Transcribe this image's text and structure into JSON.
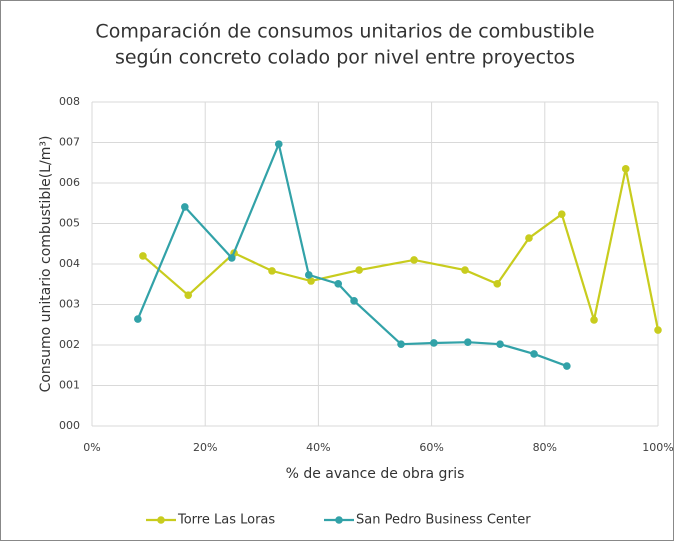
{
  "chart_data": {
    "type": "line",
    "title": [
      "Comparación de consumos unitarios de combustible",
      "según concreto colado por nivel entre proyectos"
    ],
    "x_label": "% de avance de obra gris",
    "y_label": "Consumo unitario combustible(L/m³)",
    "xlim": [
      0,
      100
    ],
    "xticks": [
      {
        "value": 0,
        "label": "0%"
      },
      {
        "value": 20,
        "label": "20%"
      },
      {
        "value": 40,
        "label": "40%"
      },
      {
        "value": 60,
        "label": "60%"
      },
      {
        "value": 80,
        "label": "80%"
      },
      {
        "value": 100,
        "label": "100%"
      }
    ],
    "ylim": [
      0,
      8
    ],
    "yticks": [
      {
        "value": 0,
        "label": "000"
      },
      {
        "value": 1,
        "label": "001"
      },
      {
        "value": 2,
        "label": "002"
      },
      {
        "value": 3,
        "label": "003"
      },
      {
        "value": 4,
        "label": "004"
      },
      {
        "value": 5,
        "label": "005"
      },
      {
        "value": 6,
        "label": "006"
      },
      {
        "value": 7,
        "label": "007"
      },
      {
        "value": 8,
        "label": "008"
      }
    ],
    "grid": true,
    "legend": "bottom",
    "series": [
      {
        "name": "Torre Las Loras",
        "color": "#c8cc1e",
        "x": [
          9.0,
          17.0,
          25.1,
          31.8,
          38.7,
          47.2,
          56.9,
          65.9,
          71.6,
          77.2,
          83.0,
          88.7,
          94.3,
          100
        ],
        "values": [
          4.2,
          3.23,
          4.27,
          3.83,
          3.58,
          3.85,
          4.1,
          3.85,
          3.51,
          4.64,
          5.23,
          2.62,
          6.35,
          2.37
        ]
      },
      {
        "name": "San Pedro Business Center",
        "color": "#32a2a8",
        "x": [
          8.1,
          16.4,
          24.7,
          33.0,
          38.3,
          43.5,
          46.3,
          54.6,
          60.4,
          66.4,
          72.1,
          78.1,
          83.9
        ],
        "values": [
          2.64,
          5.41,
          4.15,
          6.96,
          3.73,
          3.51,
          3.09,
          2.02,
          2.05,
          2.07,
          2.02,
          1.78,
          1.48
        ]
      }
    ]
  }
}
